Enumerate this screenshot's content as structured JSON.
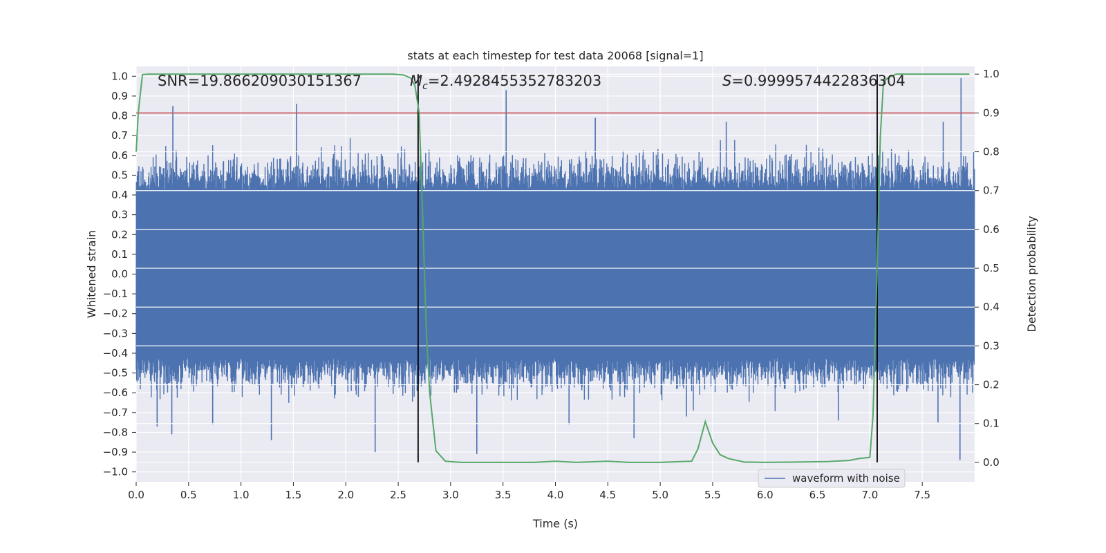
{
  "chart_data": {
    "type": "line",
    "title": "stats at each timestep for test data 20068 [signal=1]",
    "xlabel": "Time (s)",
    "ylabel": "Whitened strain",
    "ylabel_right": "Detection probability",
    "xlim": [
      0.0,
      8.0
    ],
    "ylim": [
      -1.05,
      1.05
    ],
    "ylim_right": [
      -0.05,
      1.02
    ],
    "x_ticks": [
      0.0,
      0.5,
      1.0,
      1.5,
      2.0,
      2.5,
      3.0,
      3.5,
      4.0,
      4.5,
      5.0,
      5.5,
      6.0,
      6.5,
      7.0,
      7.5
    ],
    "x_tick_labels": [
      "0.0",
      "0.5",
      "1.0",
      "1.5",
      "2.0",
      "2.5",
      "3.0",
      "3.5",
      "4.0",
      "4.5",
      "5.0",
      "5.5",
      "6.0",
      "6.5",
      "7.0",
      "7.5"
    ],
    "y_ticks": [
      1.0,
      0.9,
      0.8,
      0.7,
      0.6,
      0.5,
      0.4,
      0.3,
      0.2,
      0.1,
      0.0,
      -0.1,
      -0.2,
      -0.3,
      -0.4,
      -0.5,
      -0.6,
      -0.7,
      -0.8,
      -0.9,
      -1.0
    ],
    "y_tick_labels": [
      "1.0",
      "0.9",
      "0.8",
      "0.7",
      "0.6",
      "0.5",
      "0.4",
      "0.3",
      "0.2",
      "0.1",
      "0.0",
      "−0.1",
      "−0.2",
      "−0.3",
      "−0.4",
      "−0.5",
      "−0.6",
      "−0.7",
      "−0.8",
      "−0.9",
      "−1.0"
    ],
    "y2_ticks": [
      1.0,
      0.9,
      0.8,
      0.7,
      0.6,
      0.5,
      0.4,
      0.3,
      0.2,
      0.1,
      0.0
    ],
    "y2_tick_labels": [
      "1.0",
      "0.9",
      "0.8",
      "0.7",
      "0.6",
      "0.5",
      "0.4",
      "0.3",
      "0.2",
      "0.1",
      "0.0"
    ],
    "annotations": {
      "snr": "SNR=19.866209030151367",
      "mc_symbol": "M",
      "mc_sub": "c",
      "mc_value": "=2.4928455352783203",
      "s_symbol": "S",
      "s_value": "=0.9999574422836304"
    },
    "threshold": 0.9,
    "event_lines_x": [
      2.69,
      7.07
    ],
    "legend": [
      "waveform with noise"
    ],
    "legend_position": "lower-right",
    "colors": {
      "waveform": "#4c72b0",
      "probability": "#55a868",
      "threshold": "#c44e52",
      "event": "#000000"
    },
    "series": [
      {
        "name": "waveform with noise",
        "axis": "left",
        "style": "dense-noise",
        "core_amplitude": 0.42,
        "peaks": [
          {
            "x": 0.35,
            "y": 0.85
          },
          {
            "x": 1.53,
            "y": 0.86
          },
          {
            "x": 3.53,
            "y": 0.93
          },
          {
            "x": 4.38,
            "y": 0.79
          },
          {
            "x": 7.87,
            "y": 0.99
          },
          {
            "x": 7.86,
            "y": -0.94
          },
          {
            "x": 1.29,
            "y": -0.84
          },
          {
            "x": 2.28,
            "y": -0.9
          },
          {
            "x": 3.25,
            "y": -0.91
          },
          {
            "x": 0.2,
            "y": -0.77
          },
          {
            "x": 0.34,
            "y": -0.81
          },
          {
            "x": 4.13,
            "y": -0.76
          },
          {
            "x": 4.75,
            "y": -0.83
          },
          {
            "x": 5.25,
            "y": -0.72
          },
          {
            "x": 6.7,
            "y": -0.74
          },
          {
            "x": 0.73,
            "y": -0.76
          },
          {
            "x": 1.3,
            "y": 0.5
          },
          {
            "x": 5.63,
            "y": 0.77
          },
          {
            "x": 7.7,
            "y": 0.77
          },
          {
            "x": 7.65,
            "y": -0.75
          }
        ]
      },
      {
        "name": "detection probability",
        "axis": "right",
        "x": [
          0.0,
          0.02,
          0.06,
          0.12,
          0.2,
          0.5,
          1.0,
          1.5,
          2.0,
          2.3,
          2.45,
          2.55,
          2.62,
          2.66,
          2.7,
          2.73,
          2.77,
          2.8,
          2.86,
          2.95,
          3.1,
          3.3,
          3.5,
          3.8,
          4.0,
          4.2,
          4.5,
          4.7,
          5.0,
          5.2,
          5.3,
          5.36,
          5.43,
          5.5,
          5.57,
          5.65,
          5.8,
          6.0,
          6.3,
          6.6,
          6.8,
          6.9,
          6.97,
          7.0,
          7.03,
          7.07,
          7.1,
          7.13,
          7.17,
          7.25,
          7.5,
          7.8,
          7.95
        ],
        "y": [
          0.8,
          0.9,
          0.999,
          1.0,
          1.0,
          1.0,
          1.0,
          1.0,
          1.0,
          1.0,
          1.0,
          0.998,
          0.99,
          0.97,
          0.9,
          0.66,
          0.33,
          0.18,
          0.03,
          0.003,
          0.0,
          0.0,
          0.0,
          0.0,
          0.003,
          0.0,
          0.003,
          0.0,
          0.0,
          0.002,
          0.003,
          0.035,
          0.105,
          0.05,
          0.02,
          0.01,
          0.001,
          0.0,
          0.001,
          0.002,
          0.005,
          0.01,
          0.012,
          0.013,
          0.12,
          0.5,
          0.84,
          0.98,
          0.99,
          1.0,
          1.0,
          1.0,
          1.0
        ]
      }
    ]
  }
}
